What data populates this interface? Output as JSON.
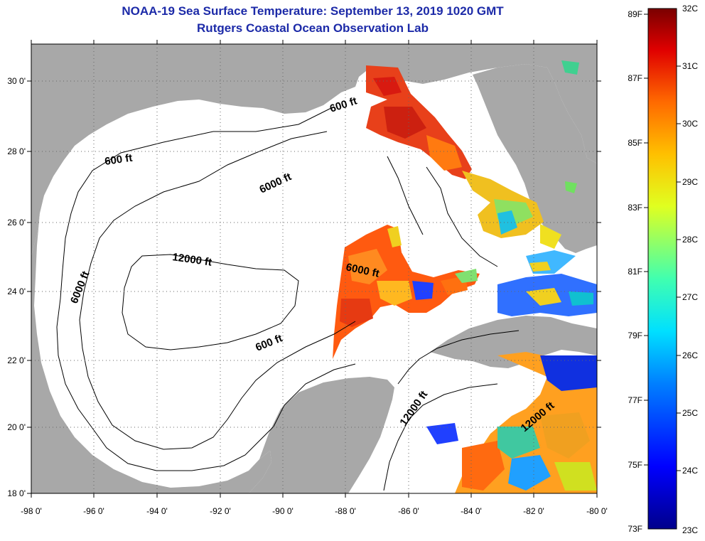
{
  "title": "NOAA-19 Sea Surface Temperature:  September 13, 2019 1020 GMT",
  "subtitle": "Rutgers Coastal Ocean Observation Lab",
  "longitude_labels": [
    "-98 0'",
    "-96 0'",
    "-94 0'",
    "-92 0'",
    "-90 0'",
    "-88 0'",
    "-86 0'",
    "-84 0'",
    "-82 0'",
    "-80 0'"
  ],
  "latitude_labels": [
    "30 0'",
    "28 0'",
    "26 0'",
    "24 0'",
    "22 0'",
    "20 0'",
    "18 0'"
  ],
  "depth_contour_labels": {
    "c1": "600 ft",
    "c2": "600 ft",
    "c3": "6000 ft",
    "c4": "12000 ft",
    "c5": "6000 ft",
    "c6": "6000 ft",
    "c7": "600 ft",
    "c8": "12000 ft",
    "c9": "12000 ft"
  },
  "colorbar": {
    "fahrenheit_labels": [
      "89F",
      "87F",
      "85F",
      "83F",
      "81F",
      "79F",
      "77F",
      "75F",
      "73F"
    ],
    "celsius_labels": [
      "32C",
      "31C",
      "30C",
      "29C",
      "28C",
      "27C",
      "26C",
      "25C",
      "24C",
      "23C"
    ],
    "min_c": 23,
    "max_c": 32,
    "min_f": 73,
    "max_f": 89
  },
  "colors": {
    "land": "#a8a8a8",
    "ocean": "#ffffff",
    "title_text": "#1c2aa8",
    "grid": "#666666"
  }
}
